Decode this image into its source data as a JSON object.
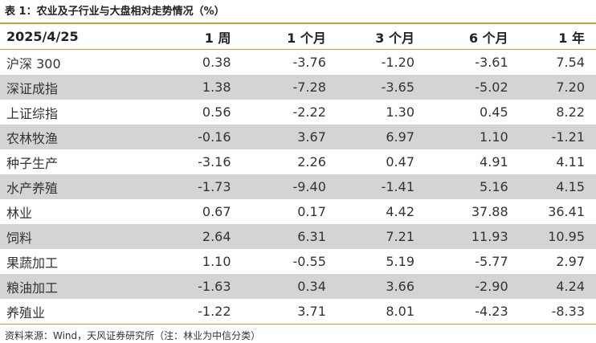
{
  "header": {
    "title": "表 1：农业及子行业与大盘相对走势情况（%）"
  },
  "table": {
    "columns": [
      "2025/4/25",
      "1 周",
      "1 个月",
      "3 个月",
      "6 个月",
      "1 年"
    ],
    "rows": [
      [
        "沪深 300",
        "0.38",
        "-3.76",
        "-1.20",
        "-3.61",
        "7.54"
      ],
      [
        "深证成指",
        "1.38",
        "-7.28",
        "-3.65",
        "-5.02",
        "7.20"
      ],
      [
        "上证综指",
        "0.56",
        "-2.22",
        "1.30",
        "0.45",
        "8.22"
      ],
      [
        "农林牧渔",
        "-0.16",
        "3.67",
        "6.97",
        "1.10",
        "-1.21"
      ],
      [
        "种子生产",
        "-3.16",
        "2.26",
        "0.47",
        "4.91",
        "4.11"
      ],
      [
        "水产养殖",
        "-1.73",
        "-9.40",
        "-1.41",
        "5.16",
        "4.15"
      ],
      [
        "林业",
        "0.67",
        "0.17",
        "4.42",
        "37.88",
        "36.41"
      ],
      [
        "饲料",
        "2.64",
        "6.31",
        "7.21",
        "11.93",
        "10.95"
      ],
      [
        "果蔬加工",
        "1.10",
        "-0.55",
        "5.19",
        "-5.77",
        "2.97"
      ],
      [
        "粮油加工",
        "-1.63",
        "0.34",
        "3.66",
        "-2.90",
        "4.24"
      ],
      [
        "养殖业",
        "-1.22",
        "3.71",
        "8.01",
        "-4.23",
        "-8.33"
      ]
    ]
  },
  "footer": {
    "source": "资料来源：Wind，天风证券研究所（注：林业为中信分类）"
  }
}
